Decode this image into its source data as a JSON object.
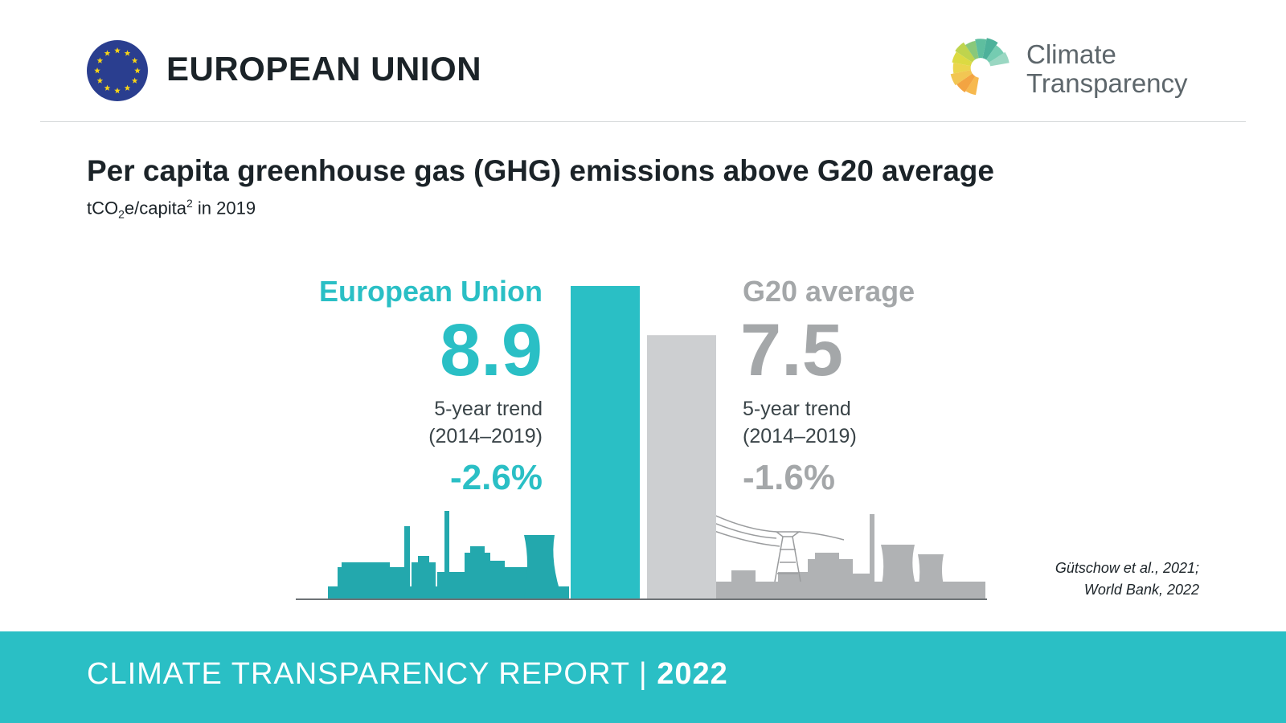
{
  "header": {
    "country": "EUROPEAN UNION",
    "logo_line1": "Climate",
    "logo_line2": "Transparency"
  },
  "chart_data": {
    "type": "bar",
    "title": "Per capita greenhouse gas (GHG) emissions above G20 average",
    "subtitle_pre": "tCO",
    "subtitle_sub": "2",
    "subtitle_mid": "e/capita",
    "subtitle_sup": "2",
    "subtitle_post": " in 2019",
    "categories": [
      "European Union",
      "G20 average"
    ],
    "values": [
      8.9,
      7.5
    ],
    "value_labels": [
      "8.9",
      "7.5"
    ],
    "trend_label_line1": "5-year trend",
    "trend_label_line2": "(2014–2019)",
    "trend_values": [
      "-2.6%",
      "-1.6%"
    ],
    "ylim": [
      0,
      8.9
    ],
    "colors": [
      "#2abfc5",
      "#cdcfd1"
    ]
  },
  "source": {
    "line1": "Gütschow et al., 2021;",
    "line2": "World Bank, 2022"
  },
  "footer": {
    "report": "CLIMATE TRANSPARENCY REPORT | ",
    "year": "2022"
  }
}
